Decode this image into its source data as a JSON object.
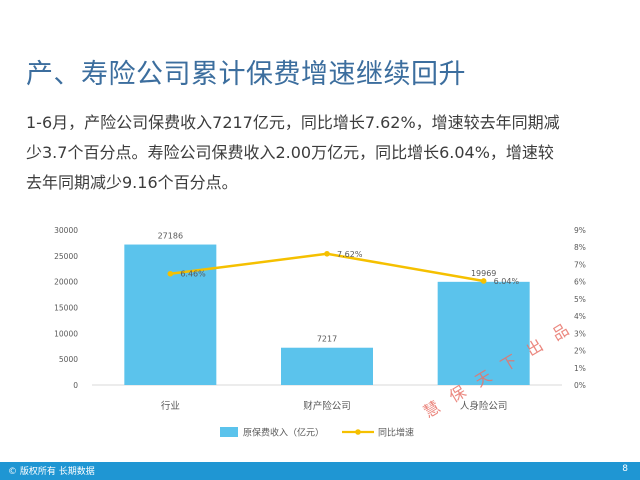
{
  "slide": {
    "title": "产、寿险公司累计保费增速继续回升",
    "paragraph_lines": [
      "1-6月，产险公司保费收入7217亿元，同比增长7.62%，增速较去年同期减",
      "少3.7个百分点。寿险公司保费收入2.00万亿元，同比增长6.04%，增速较",
      "去年同期减少9.16个百分点。"
    ],
    "footer_left": "© 版权所有 长期数据",
    "page_number": "8",
    "watermark": "慧保天下出品"
  },
  "colors": {
    "bar": "#5bc3ec",
    "line": "#f5c000",
    "title": "#3c6e9e",
    "footer": "#1f96d3"
  },
  "chart_data": {
    "type": "bar+line",
    "categories": [
      "行业",
      "财产险公司",
      "人身险公司"
    ],
    "series": [
      {
        "name": "原保费收入（亿元）",
        "type": "bar",
        "axis": "left",
        "values": [
          27186,
          7217,
          19969
        ],
        "labels": [
          "27186",
          "7217",
          "19969"
        ]
      },
      {
        "name": "同比增速",
        "type": "line",
        "axis": "right",
        "values": [
          6.46,
          7.62,
          6.04
        ],
        "labels": [
          "6.46%",
          "7.62%",
          "6.04%"
        ]
      }
    ],
    "y_left": {
      "min": 0,
      "max": 30000,
      "ticks": [
        "0",
        "5000",
        "10000",
        "15000",
        "20000",
        "25000",
        "30000"
      ]
    },
    "y_right": {
      "min": 0,
      "max": 9,
      "ticks": [
        "0%",
        "1%",
        "2%",
        "3%",
        "4%",
        "5%",
        "6%",
        "7%",
        "8%",
        "9%"
      ]
    },
    "legend_position": "bottom-center",
    "grid": false
  }
}
